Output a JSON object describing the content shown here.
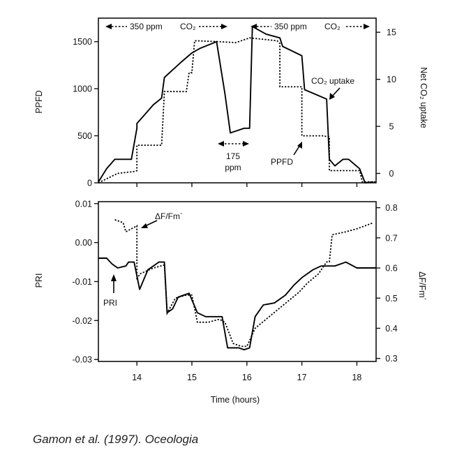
{
  "chart_data": [
    {
      "type": "line",
      "panel": "top",
      "ylabel_left": "PPFD",
      "ylabel_right": "Net CO₂ uptake",
      "xlim": [
        13.3,
        18.35
      ],
      "ylim_left": [
        0,
        1750
      ],
      "ylim_right": [
        -1,
        16.5
      ],
      "x_ticks": [
        14,
        15,
        16,
        17,
        18
      ],
      "yticks_left": [
        "0",
        "500",
        "1000",
        "1500"
      ],
      "yticks_right": [
        "0",
        "5",
        "10",
        "15"
      ],
      "series": [
        {
          "name": "CO₂ uptake",
          "axis": "right",
          "style": "solid",
          "x": [
            13.3,
            13.45,
            13.6,
            13.65,
            13.9,
            14.0,
            14.0,
            14.3,
            14.45,
            14.5,
            14.8,
            15.0,
            15.15,
            15.45,
            15.6,
            15.7,
            15.85,
            15.95,
            16.05,
            16.1,
            16.35,
            16.6,
            16.65,
            17.0,
            17.05,
            17.45,
            17.5,
            17.6,
            17.75,
            17.85,
            18.05,
            18.15,
            18.3
          ],
          "y": [
            -0.9,
            0.5,
            1.5,
            1.5,
            1.5,
            4.8,
            5.3,
            7.3,
            8.0,
            10.2,
            11.8,
            12.8,
            13.3,
            14.0,
            8.5,
            4.3,
            4.6,
            4.8,
            4.8,
            15.6,
            14.8,
            14.4,
            13.5,
            12.5,
            8.9,
            7.9,
            1.5,
            0.8,
            1.5,
            1.5,
            0.5,
            -1.0,
            -0.9
          ]
        },
        {
          "name": "PPFD",
          "axis": "left",
          "style": "dotted",
          "x": [
            13.3,
            13.65,
            13.95,
            14.0,
            14.0,
            14.4,
            14.45,
            14.5,
            14.9,
            14.95,
            15.0,
            15.05,
            15.5,
            15.8,
            15.95,
            16.05,
            16.55,
            16.6,
            16.6,
            16.95,
            17.0,
            17.0,
            17.4,
            17.45,
            17.5,
            17.5,
            17.9,
            18.05,
            18.1,
            18.35
          ],
          "y": [
            0,
            100,
            120,
            130,
            400,
            400,
            400,
            970,
            970,
            1170,
            1170,
            1510,
            1500,
            1490,
            1520,
            1540,
            1510,
            1480,
            1020,
            1020,
            1020,
            500,
            500,
            490,
            490,
            130,
            130,
            130,
            10,
            10
          ]
        }
      ],
      "annotations": {
        "top_left_ppm": "350 ppm",
        "top_left_co2": "CO₂",
        "top_right_ppm": "350 ppm",
        "top_right_co2": "CO₂",
        "mid_ppm_value": "175",
        "mid_ppm_unit": "ppm",
        "co2_uptake_label": "CO₂ uptake",
        "ppfd_label": "PPFD"
      }
    },
    {
      "type": "line",
      "panel": "bottom",
      "xlabel": "Time (hours)",
      "ylabel_left": "PRI",
      "ylabel_right": "ΔF/Fm´",
      "xlim": [
        13.3,
        18.35
      ],
      "ylim_left": [
        -0.0305,
        0.0105
      ],
      "ylim_right": [
        0.29,
        0.82
      ],
      "x_ticks": [
        14,
        15,
        16,
        17,
        18
      ],
      "x_tick_labels": [
        "14",
        "15",
        "16",
        "17",
        "18"
      ],
      "yticks_left": [
        "0.01",
        "0.00",
        "-0.01",
        "-0.02",
        "-0.03"
      ],
      "yticks_right": [
        "0.8",
        "0.7",
        "0.6",
        "0.5",
        "0.4",
        "0.3"
      ],
      "series": [
        {
          "name": "PRI",
          "axis": "left",
          "style": "solid",
          "x": [
            13.3,
            13.45,
            13.55,
            13.65,
            13.8,
            13.85,
            13.95,
            14.05,
            14.2,
            14.4,
            14.5,
            14.55,
            14.65,
            14.75,
            14.95,
            15.1,
            15.25,
            15.4,
            15.55,
            15.65,
            15.85,
            15.95,
            16.05,
            16.15,
            16.3,
            16.5,
            16.7,
            16.85,
            17.0,
            17.2,
            17.35,
            17.6,
            17.8,
            18.0,
            18.2,
            18.35
          ],
          "y": [
            -0.004,
            -0.004,
            -0.0055,
            -0.0065,
            -0.006,
            -0.005,
            -0.005,
            -0.012,
            -0.007,
            -0.005,
            -0.005,
            -0.018,
            -0.017,
            -0.014,
            -0.013,
            -0.018,
            -0.019,
            -0.019,
            -0.019,
            -0.027,
            -0.027,
            -0.0275,
            -0.027,
            -0.019,
            -0.016,
            -0.0155,
            -0.0135,
            -0.011,
            -0.009,
            -0.007,
            -0.006,
            -0.006,
            -0.005,
            -0.0065,
            -0.0065,
            -0.0065
          ]
        },
        {
          "name": "ΔF/Fm´",
          "axis": "right",
          "style": "dotted",
          "x": [
            13.6,
            13.75,
            13.8,
            13.9,
            14.0,
            14.0,
            14.05,
            14.3,
            14.5,
            14.55,
            14.7,
            14.9,
            15.0,
            15.1,
            15.3,
            15.5,
            15.6,
            15.75,
            15.9,
            16.0,
            16.15,
            16.35,
            16.55,
            16.75,
            16.95,
            17.1,
            17.3,
            17.45,
            17.5,
            17.55,
            17.8,
            18.0,
            18.15,
            18.3
          ],
          "y": [
            0.76,
            0.75,
            0.72,
            0.73,
            0.74,
            0.56,
            0.58,
            0.6,
            0.61,
            0.45,
            0.5,
            0.51,
            0.51,
            0.42,
            0.42,
            0.43,
            0.42,
            0.35,
            0.34,
            0.34,
            0.4,
            0.43,
            0.46,
            0.49,
            0.52,
            0.55,
            0.58,
            0.62,
            0.62,
            0.71,
            0.72,
            0.73,
            0.74,
            0.75
          ]
        }
      ],
      "annotations": {
        "fluor_label": "ΔF/Fm´",
        "pri_label": "PRI"
      }
    }
  ],
  "citation": "Gamon et al. (1997). Oceologia"
}
